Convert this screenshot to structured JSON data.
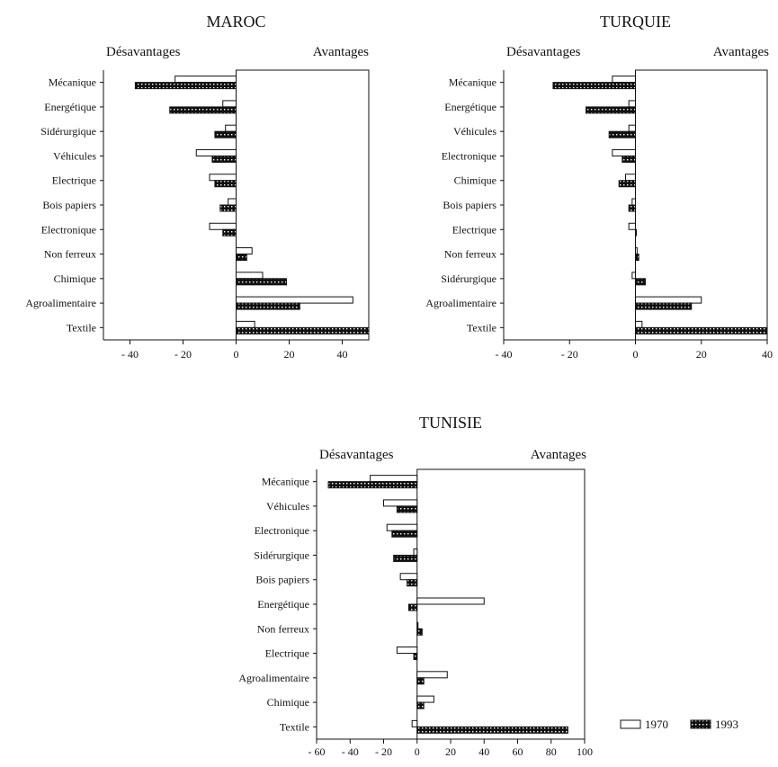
{
  "colors": {
    "bar_1970": "#ffffff",
    "bar_1993": "#111111",
    "axis": "#111111",
    "background": "#ffffff"
  },
  "legend": {
    "items": [
      "1970",
      "1993"
    ],
    "placement": "bottom-right"
  },
  "chart_data": [
    {
      "type": "bar",
      "orientation": "horizontal",
      "title": "MAROC",
      "left_label": "Désavantages",
      "right_label": "Avantages",
      "categories": [
        "Mécanique",
        "Energétique",
        "Sidérurgique",
        "Véhicules",
        "Electrique",
        "Bois papiers",
        "Electronique",
        "Non ferreux",
        "Chimique",
        "Agroalimentaire",
        "Textile"
      ],
      "series": [
        {
          "name": "1970",
          "values": [
            -23,
            -5,
            -4,
            -15,
            -10,
            -3,
            -10,
            6,
            10,
            44,
            7
          ]
        },
        {
          "name": "1993",
          "values": [
            -38,
            -25,
            -8,
            -9,
            -8,
            -6,
            -5,
            4,
            19,
            24,
            50
          ]
        }
      ],
      "xlim": [
        -50,
        50
      ],
      "xticks": [
        -40,
        -20,
        0,
        20,
        40
      ],
      "grid": false
    },
    {
      "type": "bar",
      "orientation": "horizontal",
      "title": "TURQUIE",
      "left_label": "Désavantages",
      "right_label": "Avantages",
      "categories": [
        "Mécanique",
        "Energétique",
        "Véhicules",
        "Electronique",
        "Chimique",
        "Bois papiers",
        "Electrique",
        "Non ferreux",
        "Sidérurgique",
        "Agroalimentaire",
        "Textile"
      ],
      "series": [
        {
          "name": "1970",
          "values": [
            -7,
            -2,
            -2,
            -7,
            -3,
            -1,
            -2,
            0.5,
            -1,
            20,
            2
          ]
        },
        {
          "name": "1993",
          "values": [
            -25,
            -15,
            -8,
            -4,
            -5,
            -2,
            0,
            1,
            3,
            17,
            40
          ]
        }
      ],
      "xlim": [
        -40,
        40
      ],
      "xticks": [
        -40,
        -20,
        0,
        20,
        40
      ],
      "grid": false
    },
    {
      "type": "bar",
      "orientation": "horizontal",
      "title": "TUNISIE",
      "left_label": "Désavantages",
      "right_label": "Avantages",
      "categories": [
        "Mécanique",
        "Véhicules",
        "Electronique",
        "Sidérurgique",
        "Bois papiers",
        "Energétique",
        "Non ferreux",
        "Electrique",
        "Agroalimentaire",
        "Chimique",
        "Textile"
      ],
      "series": [
        {
          "name": "1970",
          "values": [
            -28,
            -20,
            -18,
            -2,
            -10,
            40,
            0,
            -12,
            18,
            10,
            -3
          ]
        },
        {
          "name": "1993",
          "values": [
            -53,
            -12,
            -15,
            -14,
            -6,
            -5,
            3,
            -2,
            4,
            4,
            90
          ]
        }
      ],
      "xlim": [
        -60,
        100
      ],
      "xticks": [
        -60,
        -40,
        -20,
        0,
        20,
        40,
        60,
        80,
        100
      ],
      "grid": false
    }
  ]
}
